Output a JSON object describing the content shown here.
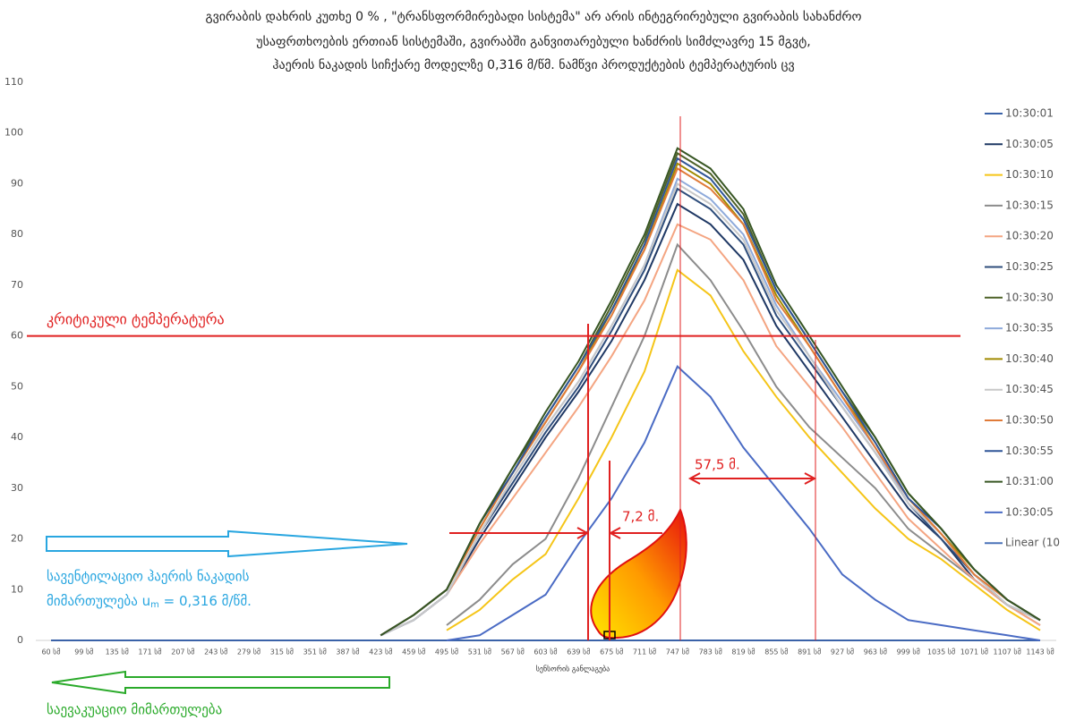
{
  "chart_data": {
    "type": "line",
    "title": [
      "გვირაბის დახრის კუთხე 0 % , \"ტრანსფორმირებადი სისტემა\" არ არის ინტეგრირებული გვირაბის სახანძრო",
      "უსაფრთხოების ერთიან სისტემაში, გვირაბში განვითარებული ხანძრის სიმძლავრე 15 მგვტ,",
      "ჰაერის ნაკადის სიჩქარე მოდელზე 0,316 მ/წმ. ნამწვი პროდუქტების ტემპერატურის ცვ"
    ],
    "x_label": "სენსორის განლაგება",
    "categories": [
      "60 სმ",
      "99 სმ",
      "135 სმ",
      "171 სმ",
      "207 სმ",
      "243 სმ",
      "279 სმ",
      "315 სმ",
      "351 სმ",
      "387 სმ",
      "423 სმ",
      "459 სმ",
      "495 სმ",
      "531 სმ",
      "567 სმ",
      "603 სმ",
      "639 სმ",
      "675 სმ",
      "711 სმ",
      "747 სმ",
      "783 სმ",
      "819 სმ",
      "855 სმ",
      "891 სმ",
      "927 სმ",
      "963 სმ",
      "999 სმ",
      "1035 სმ",
      "1071 სმ",
      "1107 სმ",
      "1143 სმ"
    ],
    "ylim": [
      0,
      110
    ],
    "yticks": [
      0,
      10,
      20,
      30,
      40,
      50,
      60,
      70,
      80,
      90,
      100,
      110
    ],
    "grid": false,
    "legend": "right",
    "series": [
      {
        "name": "10:30:01",
        "color": "#3a62a8",
        "values": [
          0,
          0,
          0,
          0,
          0,
          0,
          0,
          0,
          0,
          0,
          0,
          0,
          0,
          0,
          0,
          0,
          0,
          0,
          0,
          0,
          0,
          0,
          0,
          0,
          0,
          0,
          0,
          0,
          0,
          0,
          0
        ]
      },
      {
        "name": "10:30:05",
        "color": "#1f3864",
        "values": [
          null,
          null,
          null,
          null,
          null,
          null,
          null,
          null,
          null,
          null,
          1,
          4,
          9,
          20,
          30,
          40,
          49,
          59,
          71,
          86,
          82,
          75,
          62,
          53,
          44,
          35,
          26,
          20,
          12,
          7,
          4
        ]
      },
      {
        "name": "10:30:10",
        "color": "#f5c518",
        "values": [
          null,
          null,
          null,
          null,
          null,
          null,
          null,
          null,
          null,
          null,
          null,
          null,
          2,
          6,
          12,
          17,
          28,
          40,
          53,
          73,
          68,
          57,
          48,
          40,
          33,
          26,
          20,
          16,
          11,
          6,
          2
        ]
      },
      {
        "name": "10:30:15",
        "color": "#8c8c8c",
        "values": [
          null,
          null,
          null,
          null,
          null,
          null,
          null,
          null,
          null,
          null,
          null,
          null,
          3,
          8,
          15,
          20,
          32,
          46,
          60,
          78,
          71,
          61,
          50,
          42,
          36,
          30,
          22,
          17,
          12,
          7,
          3
        ]
      },
      {
        "name": "10:30:20",
        "color": "#f4a582",
        "values": [
          null,
          null,
          null,
          null,
          null,
          null,
          null,
          null,
          null,
          null,
          1,
          4,
          9,
          19,
          28,
          37,
          46,
          56,
          67,
          82,
          79,
          71,
          58,
          50,
          42,
          33,
          24,
          18,
          12,
          7,
          3
        ]
      },
      {
        "name": "10:30:25",
        "color": "#2e4d7b",
        "values": [
          null,
          null,
          null,
          null,
          null,
          null,
          null,
          null,
          null,
          null,
          1,
          4,
          9,
          21,
          31,
          41,
          50,
          61,
          73,
          89,
          85,
          78,
          64,
          55,
          46,
          37,
          27,
          20,
          13,
          7,
          4
        ]
      },
      {
        "name": "10:30:30",
        "color": "#4f6228",
        "values": [
          null,
          null,
          null,
          null,
          null,
          null,
          null,
          null,
          null,
          null,
          1,
          5,
          10,
          23,
          34,
          44,
          54,
          66,
          79,
          96,
          92,
          84,
          69,
          59,
          49,
          40,
          29,
          22,
          14,
          8,
          4
        ]
      },
      {
        "name": "10:30:35",
        "color": "#8eaadb",
        "values": [
          null,
          null,
          null,
          null,
          null,
          null,
          null,
          null,
          null,
          null,
          1,
          4,
          9,
          21,
          32,
          42,
          51,
          62,
          74,
          91,
          87,
          80,
          66,
          56,
          47,
          38,
          27,
          21,
          13,
          8,
          4
        ]
      },
      {
        "name": "10:30:40",
        "color": "#a08a00",
        "values": [
          null,
          null,
          null,
          null,
          null,
          null,
          null,
          null,
          null,
          null,
          1,
          5,
          10,
          22,
          33,
          43,
          53,
          65,
          77,
          94,
          90,
          82,
          68,
          58,
          48,
          39,
          28,
          21,
          14,
          8,
          4
        ]
      },
      {
        "name": "10:30:45",
        "color": "#c8c8c8",
        "values": [
          null,
          null,
          null,
          null,
          null,
          null,
          null,
          null,
          null,
          null,
          1,
          4,
          9,
          21,
          32,
          42,
          51,
          62,
          74,
          90,
          86,
          79,
          65,
          56,
          46,
          37,
          27,
          21,
          13,
          7,
          4
        ]
      },
      {
        "name": "10:30:50",
        "color": "#e07b39",
        "values": [
          null,
          null,
          null,
          null,
          null,
          null,
          null,
          null,
          null,
          null,
          1,
          5,
          10,
          22,
          33,
          43,
          53,
          64,
          77,
          93,
          89,
          82,
          67,
          58,
          48,
          38,
          28,
          21,
          13,
          8,
          4
        ]
      },
      {
        "name": "10:30:55",
        "color": "#2f5597",
        "values": [
          null,
          null,
          null,
          null,
          null,
          null,
          null,
          null,
          null,
          null,
          1,
          5,
          10,
          23,
          33,
          44,
          54,
          65,
          78,
          95,
          91,
          83,
          69,
          59,
          49,
          39,
          28,
          22,
          14,
          8,
          4
        ]
      },
      {
        "name": "10:31:00",
        "color": "#375623",
        "values": [
          null,
          null,
          null,
          null,
          null,
          null,
          null,
          null,
          null,
          null,
          1,
          5,
          10,
          23,
          34,
          45,
          55,
          67,
          80,
          97,
          93,
          85,
          70,
          60,
          50,
          40,
          29,
          22,
          14,
          8,
          4
        ]
      },
      {
        "name": "10:30:05",
        "color": "#4a6bc4",
        "values": [
          null,
          null,
          null,
          null,
          null,
          null,
          null,
          null,
          null,
          null,
          null,
          null,
          0,
          1,
          5,
          9,
          19,
          28,
          39,
          54,
          48,
          38,
          30,
          22,
          13,
          8,
          4,
          3,
          2,
          1,
          0
        ]
      }
    ],
    "trendline_label": "Linear (10",
    "critical_temperature": 60,
    "critical_label": "კრიტიკული ტემპერატურა",
    "distance_labels": [
      "7,2 მ.",
      "57,5 მ."
    ],
    "ventilation_label": [
      "სავენტილაციო ჰაერის ნაკადის",
      "მიმართულება u",
      "m",
      " = 0,316 მ/წმ."
    ],
    "evacuation_label": "საევაკუაციო მიმართულება"
  }
}
